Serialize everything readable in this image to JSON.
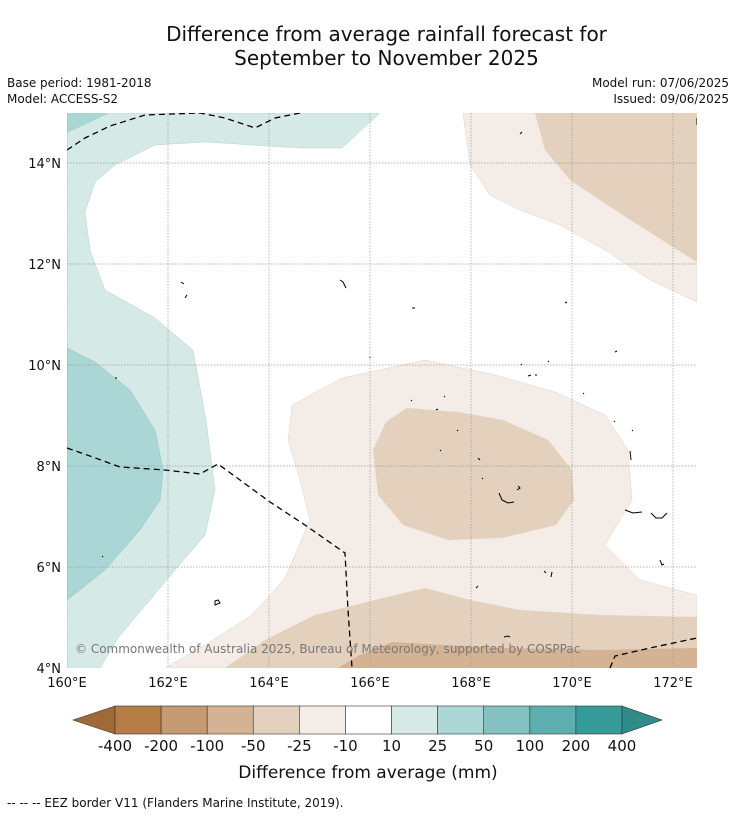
{
  "title_line1": "Difference from average rainfall forecast for",
  "title_line2": "September to November 2025",
  "meta": {
    "base_period": "Base period: 1981-2018",
    "model": "Model: ACCESS-S2",
    "model_run": "Model run: 07/06/2025",
    "issued": "Issued: 09/06/2025"
  },
  "map": {
    "lat_labels": [
      "14°N",
      "12°N",
      "10°N",
      "8°N",
      "6°N",
      "4°N"
    ],
    "lon_labels": [
      "160°E",
      "162°E",
      "164°E",
      "166°E",
      "168°E",
      "170°E",
      "172°E"
    ],
    "copyright": "© Commonwealth of Australia 2025, Bureau of Meteorology, supported by COSPPac"
  },
  "colorbar": {
    "ticks": [
      "-400",
      "-200",
      "-100",
      "-50",
      "-25",
      "-10",
      "10",
      "25",
      "50",
      "100",
      "200",
      "400"
    ],
    "colors": [
      "#a06a36",
      "#b57d45",
      "#c49a72",
      "#d4b394",
      "#e3d0bd",
      "#f4ece7",
      "#ffffff",
      "#d5e9e6",
      "#aad6d5",
      "#86c1c1",
      "#5dafaf",
      "#349b99",
      "#2e8b88"
    ],
    "label": "Difference from average (mm)"
  },
  "footnote": "--  --  -- EEZ border V11 (Flanders Marine Institute, 2019)."
}
